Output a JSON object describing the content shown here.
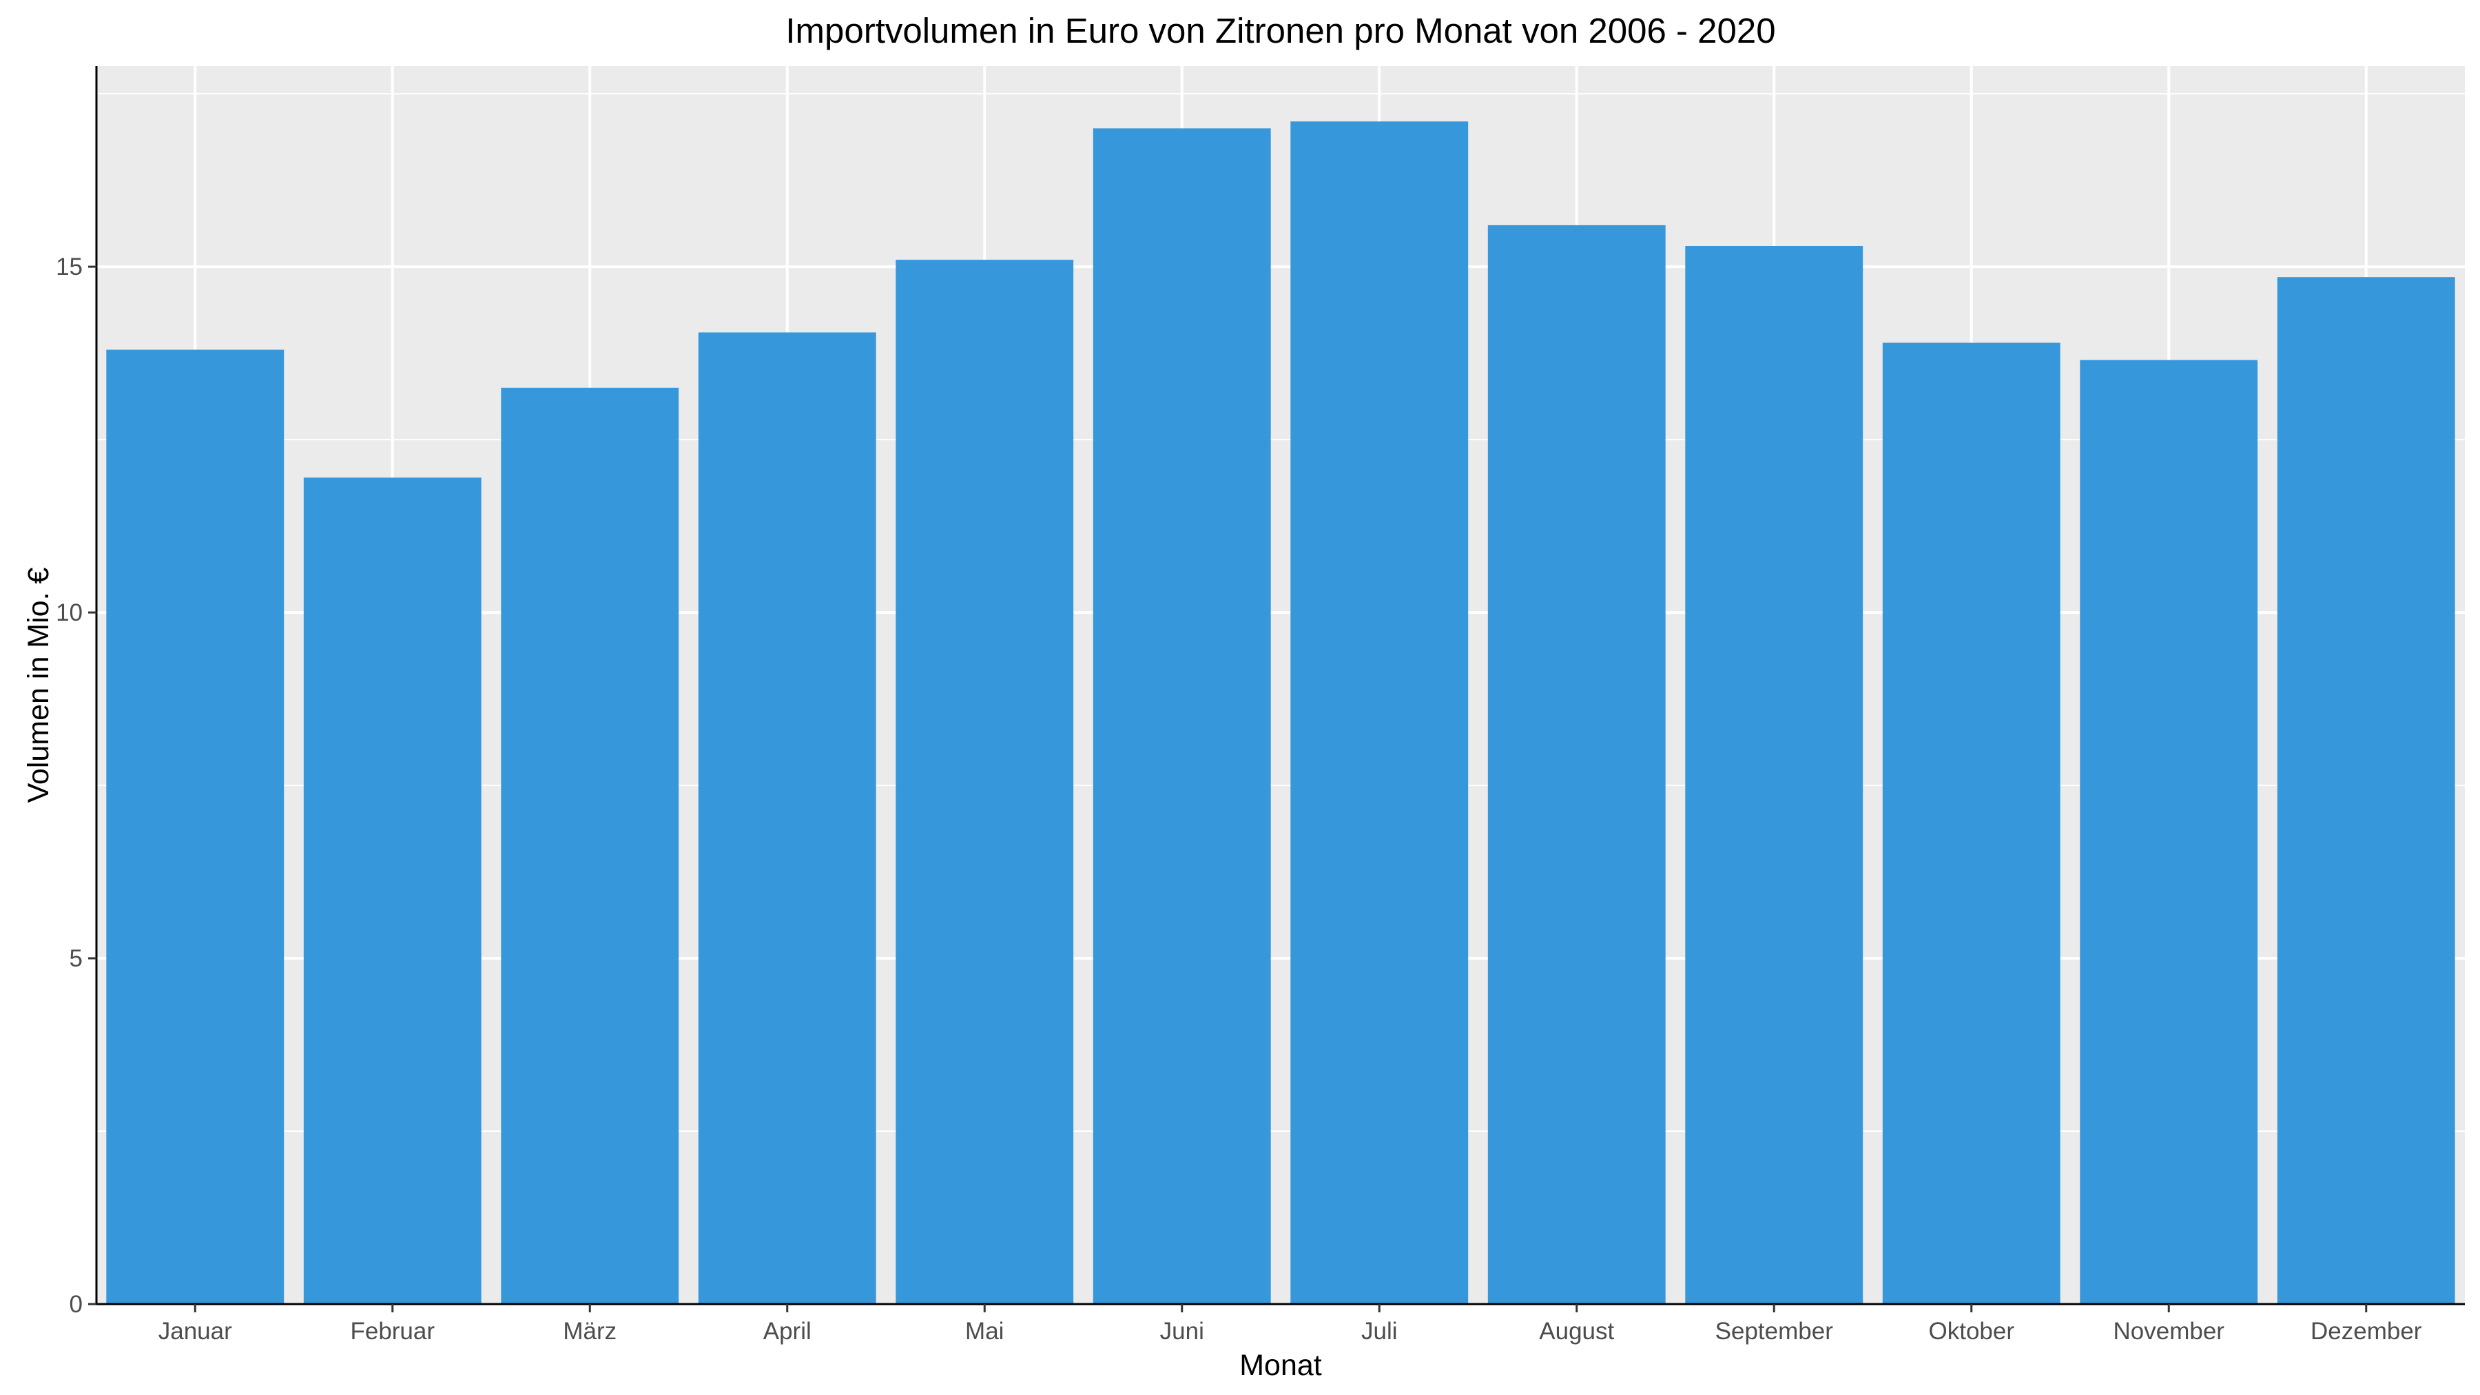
{
  "chart_data": {
    "type": "bar",
    "title": "Importvolumen in Euro von Zitronen pro Monat von 2006 - 2020",
    "xlabel": "Monat",
    "ylabel": "Volumen in Mio. €",
    "categories": [
      "Januar",
      "Februar",
      "März",
      "April",
      "Mai",
      "Juni",
      "Juli",
      "August",
      "September",
      "Oktober",
      "November",
      "Dezember"
    ],
    "values": [
      13.8,
      11.95,
      13.25,
      14.05,
      15.1,
      17.0,
      17.1,
      15.6,
      15.3,
      13.9,
      13.65,
      14.85
    ],
    "ylim": [
      0,
      17.9
    ],
    "yticks": [
      0,
      5,
      10,
      15
    ],
    "grid": true,
    "legend": "none",
    "colors": {
      "bar": "#3797db",
      "panel": "#ebebeb",
      "grid": "#ffffff",
      "axis": "#000000",
      "tick_text": "#4d4d4d"
    }
  }
}
